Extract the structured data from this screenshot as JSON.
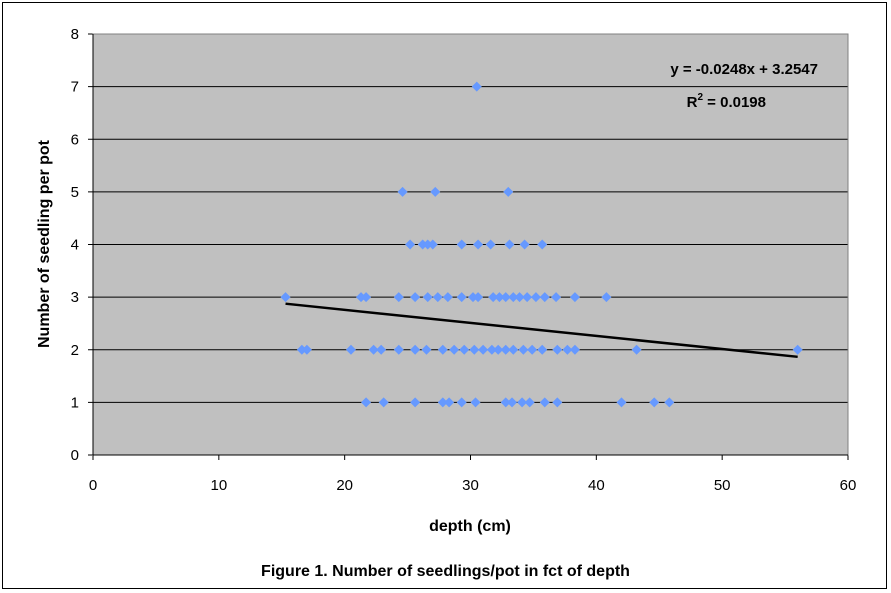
{
  "chart_data": {
    "type": "scatter",
    "title": "",
    "xlabel": "depth (cm)",
    "ylabel": "Number of seedling per pot",
    "xlim": [
      0,
      60
    ],
    "ylim": [
      0,
      8
    ],
    "xticks": [
      0,
      10,
      20,
      30,
      40,
      50,
      60
    ],
    "yticks": [
      0,
      1,
      2,
      3,
      4,
      5,
      6,
      7,
      8
    ],
    "grid": true,
    "plot_background": "#c0c0c0",
    "marker_color": "#6699ff",
    "series": [
      {
        "points": [
          {
            "x": 30.5,
            "y": 7
          },
          {
            "x": 24.6,
            "y": 5
          },
          {
            "x": 27.2,
            "y": 5
          },
          {
            "x": 33.0,
            "y": 5
          },
          {
            "x": 25.2,
            "y": 4
          },
          {
            "x": 26.2,
            "y": 4
          },
          {
            "x": 26.6,
            "y": 4
          },
          {
            "x": 27.0,
            "y": 4
          },
          {
            "x": 29.3,
            "y": 4
          },
          {
            "x": 30.6,
            "y": 4
          },
          {
            "x": 31.6,
            "y": 4
          },
          {
            "x": 33.1,
            "y": 4
          },
          {
            "x": 34.3,
            "y": 4
          },
          {
            "x": 35.7,
            "y": 4
          },
          {
            "x": 15.3,
            "y": 3
          },
          {
            "x": 21.3,
            "y": 3
          },
          {
            "x": 21.7,
            "y": 3
          },
          {
            "x": 24.3,
            "y": 3
          },
          {
            "x": 25.6,
            "y": 3
          },
          {
            "x": 26.6,
            "y": 3
          },
          {
            "x": 27.4,
            "y": 3
          },
          {
            "x": 28.2,
            "y": 3
          },
          {
            "x": 29.3,
            "y": 3
          },
          {
            "x": 30.2,
            "y": 3
          },
          {
            "x": 30.6,
            "y": 3
          },
          {
            "x": 31.8,
            "y": 3
          },
          {
            "x": 32.3,
            "y": 3
          },
          {
            "x": 32.8,
            "y": 3
          },
          {
            "x": 33.4,
            "y": 3
          },
          {
            "x": 33.9,
            "y": 3
          },
          {
            "x": 34.5,
            "y": 3
          },
          {
            "x": 35.2,
            "y": 3
          },
          {
            "x": 35.9,
            "y": 3
          },
          {
            "x": 36.8,
            "y": 3
          },
          {
            "x": 38.3,
            "y": 3
          },
          {
            "x": 40.8,
            "y": 3
          },
          {
            "x": 16.6,
            "y": 2
          },
          {
            "x": 17.0,
            "y": 2
          },
          {
            "x": 20.5,
            "y": 2
          },
          {
            "x": 22.3,
            "y": 2
          },
          {
            "x": 22.9,
            "y": 2
          },
          {
            "x": 24.3,
            "y": 2
          },
          {
            "x": 25.6,
            "y": 2
          },
          {
            "x": 26.5,
            "y": 2
          },
          {
            "x": 27.8,
            "y": 2
          },
          {
            "x": 28.7,
            "y": 2
          },
          {
            "x": 29.5,
            "y": 2
          },
          {
            "x": 30.3,
            "y": 2
          },
          {
            "x": 31.0,
            "y": 2
          },
          {
            "x": 31.7,
            "y": 2
          },
          {
            "x": 32.2,
            "y": 2
          },
          {
            "x": 32.8,
            "y": 2
          },
          {
            "x": 33.4,
            "y": 2
          },
          {
            "x": 34.2,
            "y": 2
          },
          {
            "x": 34.9,
            "y": 2
          },
          {
            "x": 35.7,
            "y": 2
          },
          {
            "x": 36.9,
            "y": 2
          },
          {
            "x": 37.7,
            "y": 2
          },
          {
            "x": 38.3,
            "y": 2
          },
          {
            "x": 43.2,
            "y": 2
          },
          {
            "x": 56.0,
            "y": 2
          },
          {
            "x": 21.7,
            "y": 1
          },
          {
            "x": 23.1,
            "y": 1
          },
          {
            "x": 25.6,
            "y": 1
          },
          {
            "x": 27.8,
            "y": 1
          },
          {
            "x": 28.3,
            "y": 1
          },
          {
            "x": 29.3,
            "y": 1
          },
          {
            "x": 30.4,
            "y": 1
          },
          {
            "x": 32.8,
            "y": 1
          },
          {
            "x": 33.3,
            "y": 1
          },
          {
            "x": 34.1,
            "y": 1
          },
          {
            "x": 34.7,
            "y": 1
          },
          {
            "x": 35.9,
            "y": 1
          },
          {
            "x": 36.9,
            "y": 1
          },
          {
            "x": 42.0,
            "y": 1
          },
          {
            "x": 44.6,
            "y": 1
          },
          {
            "x": 45.8,
            "y": 1
          }
        ]
      }
    ],
    "trendline": {
      "type": "linear",
      "slope": -0.0248,
      "intercept": 3.2547,
      "x_range": [
        15.3,
        56.0
      ],
      "equation": "y = -0.0248x + 3.2547",
      "r2_prefix": "R",
      "r2_sup": "2",
      "r2_suffix": " = 0.0198"
    }
  },
  "caption": "Figure 1. Number of seedlings/pot in fct of depth"
}
